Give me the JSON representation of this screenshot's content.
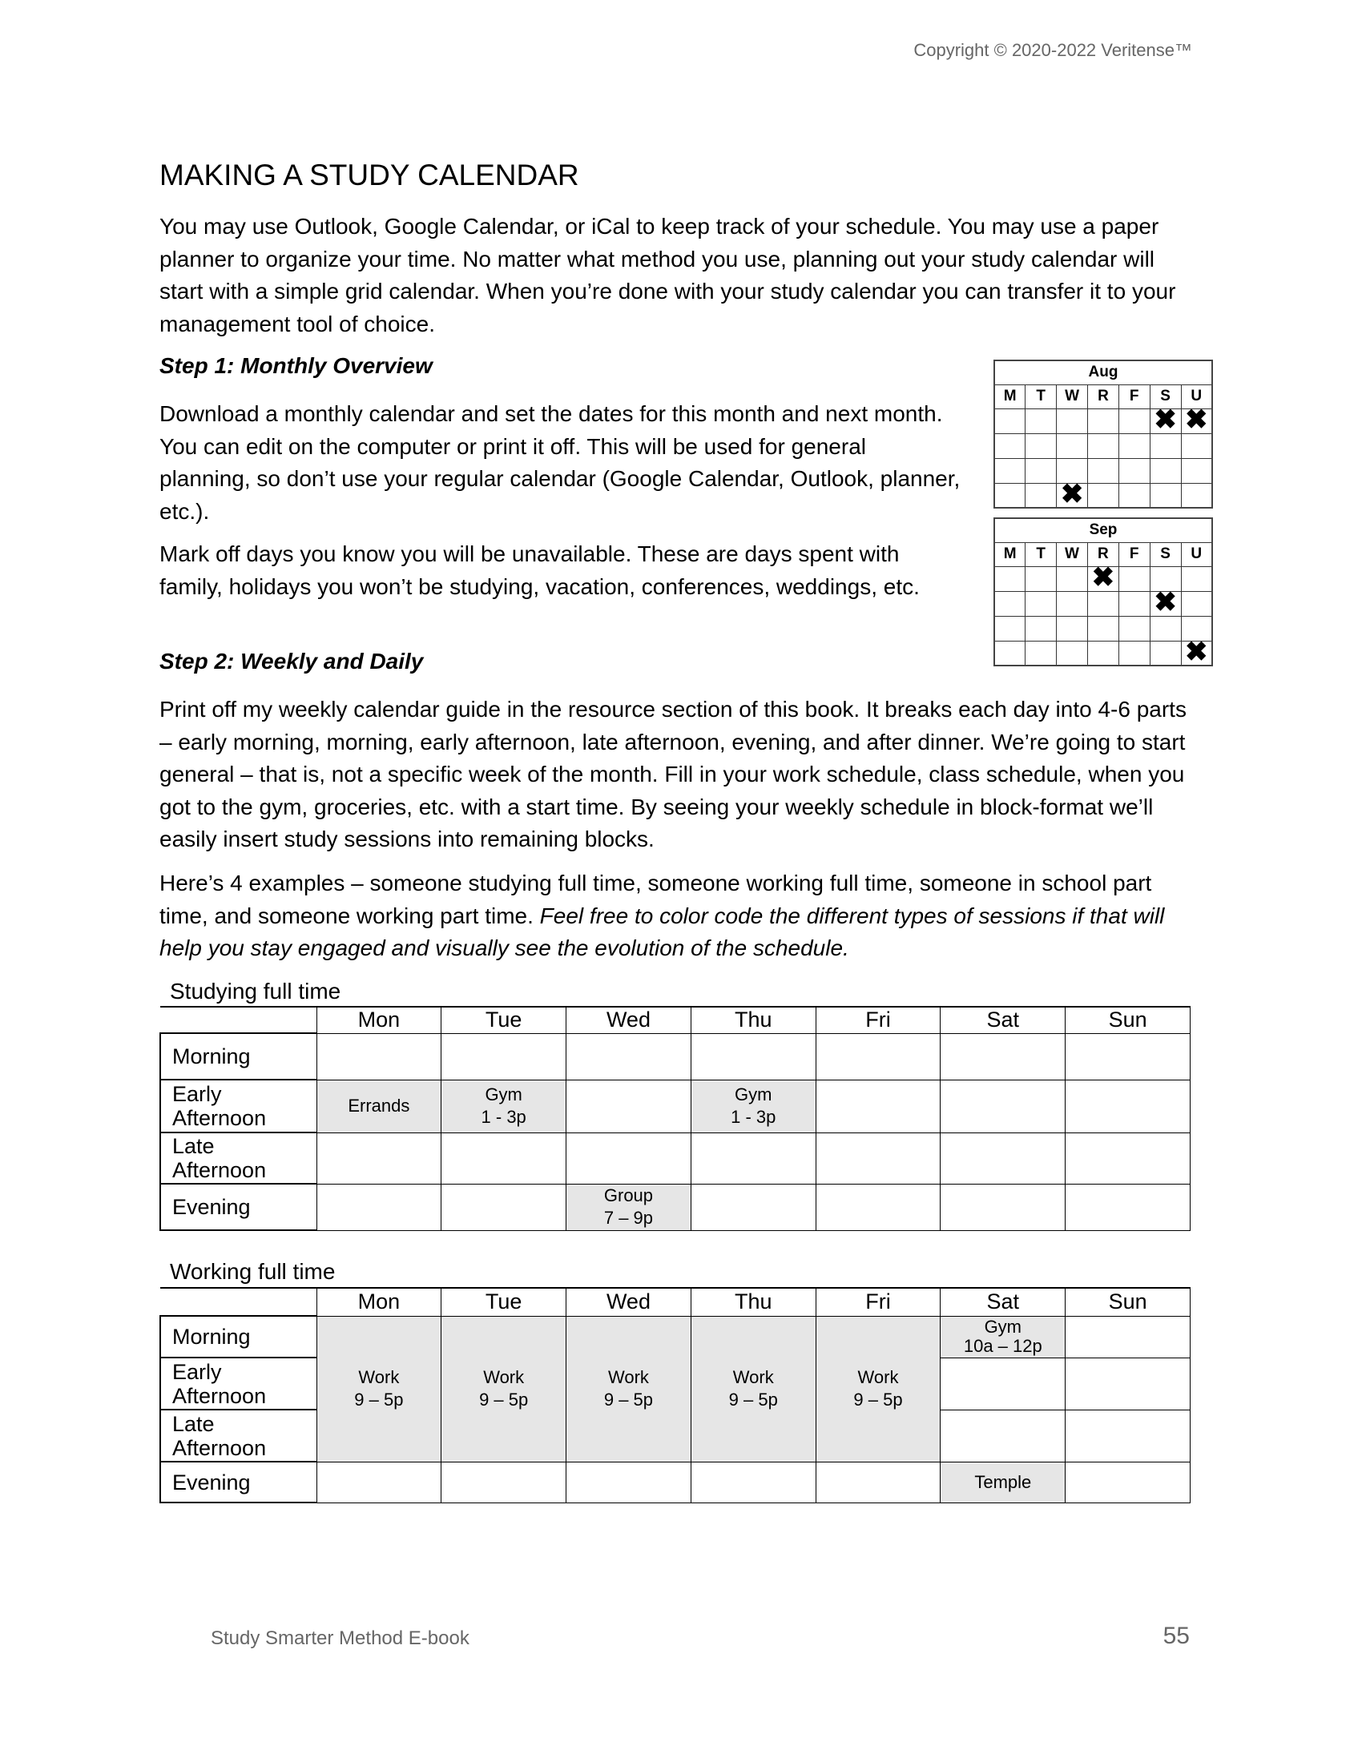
{
  "header": {
    "copyright": "Copyright © 2020-2022 Veritense™"
  },
  "title": "MAKING A STUDY CALENDAR",
  "intro": "You may use Outlook, Google Calendar, or iCal to keep track of your schedule. You may use a paper planner to organize your time. No matter what method you use, planning out your study calendar will start with a simple grid calendar. When you’re done with your study calendar you can transfer it to your management tool of choice.",
  "step1": {
    "heading": "Step 1: Monthly Overview",
    "para1": "Download a monthly calendar and set the dates for this month and next month. You can edit on the computer or print it off. This will be used for general planning, so don’t use your regular calendar (Google Calendar, Outlook, planner, etc.).",
    "para2": "Mark off days you know you will be unavailable. These are days spent with family, holidays you won’t be studying, vacation, conferences, weddings, etc."
  },
  "step2": {
    "heading": "Step 2: Weekly and Daily",
    "para1": "Print off my weekly calendar guide in the resource section of this book. It breaks each day into 4-6 parts – early morning, morning, early afternoon, late afternoon, evening, and after dinner. We’re going to start general – that is, not a specific week of the month. Fill in your work schedule, class schedule, when you got to the gym, groceries, etc. with a start time. By seeing your weekly schedule in block-format we’ll easily insert study sessions into remaining blocks.",
    "para2_normal": "Here’s 4 examples – someone studying full time, someone working full time, someone in school part time, and someone working part time. ",
    "para2_italic": "Feel free to color code the different types of sessions if that will help you stay engaged and visually see the evolution of the schedule."
  },
  "mini_calendars": [
    {
      "month": "Aug",
      "days": [
        "M",
        "T",
        "W",
        "R",
        "F",
        "S",
        "U"
      ],
      "marks": [
        [
          0,
          5
        ],
        [
          0,
          6
        ],
        [
          3,
          2
        ]
      ],
      "mark_glyph": "✖"
    },
    {
      "month": "Sep",
      "days": [
        "M",
        "T",
        "W",
        "R",
        "F",
        "S",
        "U"
      ],
      "marks": [
        [
          0,
          3
        ],
        [
          1,
          5
        ],
        [
          3,
          6
        ]
      ],
      "mark_glyph": "✖"
    }
  ],
  "tables": {
    "days": [
      "Mon",
      "Tue",
      "Wed",
      "Thu",
      "Fri",
      "Sat",
      "Sun"
    ],
    "rows": {
      "morning": "Morning",
      "early1": "Early",
      "early2": "Afternoon",
      "late1": "Late",
      "late2": "Afternoon",
      "evening": "Evening"
    },
    "studying": {
      "title": "Studying full time",
      "errands": "Errands",
      "gym": "Gym",
      "gym_time": "1 - 3p",
      "group": "Group",
      "group_time": "7 – 9p"
    },
    "working": {
      "title": "Working full time",
      "work": "Work",
      "work_time": "9 – 5p",
      "gym": "Gym",
      "gym_time": "10a – 12p",
      "temple": "Temple"
    }
  },
  "footer": {
    "book": "Study Smarter Method E-book",
    "page": "55"
  },
  "colors": {
    "shade": "#e6e6e6",
    "muted_text": "#666666"
  }
}
